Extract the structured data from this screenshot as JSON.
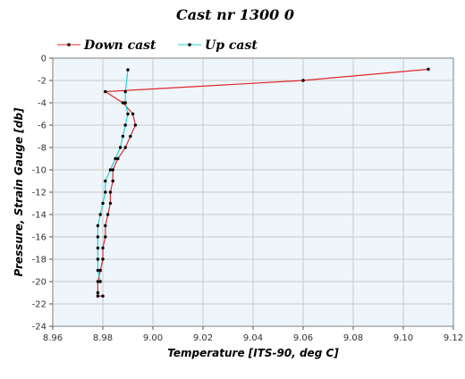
{
  "chart_data": {
    "type": "line",
    "title": "Cast nr 1300 0",
    "xlabel": "Temperature [ITS-90, deg C]",
    "ylabel": "Pressure, Strain Gauge [db]",
    "xlim": [
      8.96,
      9.12
    ],
    "ylim": [
      -24,
      0
    ],
    "xticks": [
      "8.96",
      "8.98",
      "9.00",
      "9.02",
      "9.04",
      "9.06",
      "9.08",
      "9.10",
      "9.12"
    ],
    "yticks": [
      "0",
      "-2",
      "-4",
      "-6",
      "-8",
      "-10",
      "-12",
      "-14",
      "-16",
      "-18",
      "-20",
      "-22",
      "-24"
    ],
    "grid": true,
    "legend_position": "top-left",
    "series": [
      {
        "name": "Down cast",
        "color": "#e0282c",
        "x": [
          9.11,
          9.06,
          8.981,
          8.988,
          8.992,
          8.993,
          8.991,
          8.989,
          8.986,
          8.984,
          8.984,
          8.983,
          8.983,
          8.982,
          8.981,
          8.981,
          8.98,
          8.98,
          8.979,
          8.978,
          8.978,
          8.978,
          8.98
        ],
        "y": [
          -1,
          -2,
          -3,
          -4,
          -5,
          -6,
          -7,
          -8,
          -9,
          -10,
          -11,
          -12,
          -13,
          -14,
          -15,
          -16,
          -17,
          -18,
          -19,
          -20,
          -21,
          -21.3,
          -21.3
        ]
      },
      {
        "name": "Up cast",
        "color": "#22d3d3",
        "x": [
          8.979,
          8.978,
          8.978,
          8.978,
          8.978,
          8.978,
          8.979,
          8.98,
          8.981,
          8.981,
          8.983,
          8.985,
          8.987,
          8.988,
          8.989,
          8.99,
          8.989,
          8.989,
          8.99
        ],
        "y": [
          -20,
          -19,
          -18,
          -17,
          -16,
          -15,
          -14,
          -13,
          -12,
          -11,
          -10,
          -9,
          -8,
          -7,
          -6,
          -5,
          -4,
          -3,
          -1.05
        ]
      }
    ]
  }
}
